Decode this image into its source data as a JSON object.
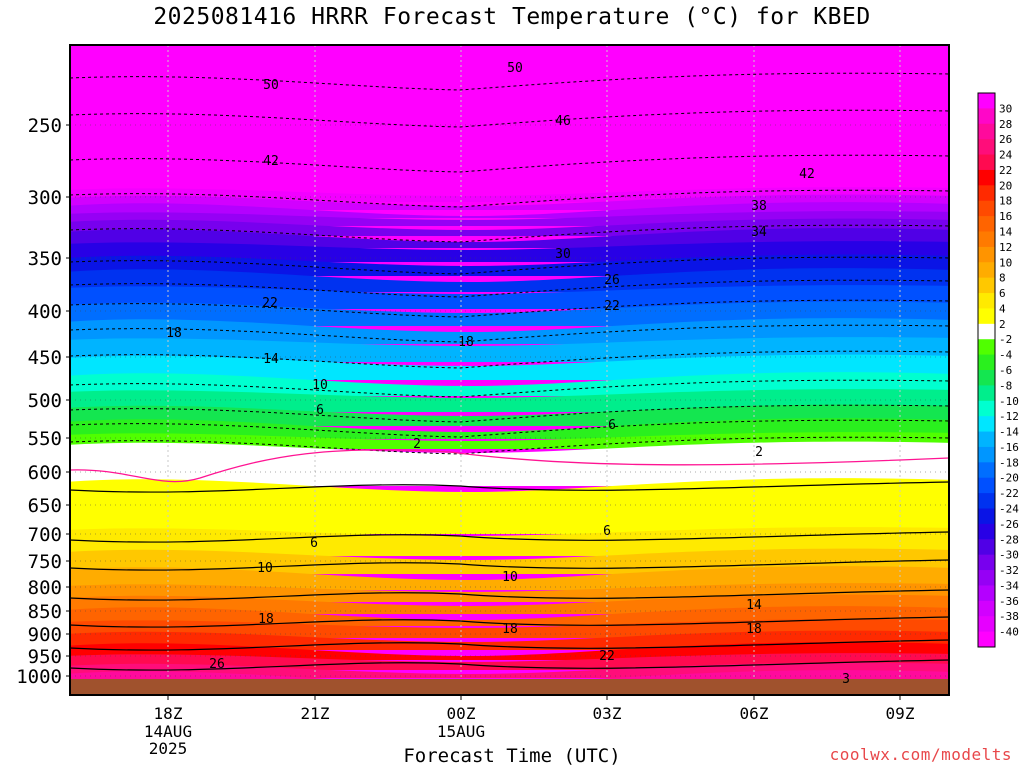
{
  "page": {
    "credit": "coolwx.com/modelts"
  },
  "chart_data": {
    "type": "heatmap",
    "title": "2025081416 HRRR Forecast Temperature (°C) for KBED",
    "xlabel": "Forecast Time (UTC)",
    "ylabel": "",
    "y_scale": "log (pressure)",
    "y_ticks": [
      250,
      300,
      350,
      400,
      450,
      500,
      550,
      600,
      650,
      700,
      750,
      800,
      850,
      900,
      950,
      1000
    ],
    "x_ticks": [
      {
        "label": "18Z",
        "sub": [
          "14AUG",
          "2025"
        ]
      },
      {
        "label": "21Z",
        "sub": []
      },
      {
        "label": "00Z",
        "sub": [
          "15AUG"
        ]
      },
      {
        "label": "03Z",
        "sub": []
      },
      {
        "label": "06Z",
        "sub": []
      },
      {
        "label": "09Z",
        "sub": []
      }
    ],
    "colorbar_labels": [
      "30",
      "28",
      "26",
      "24",
      "22",
      "20",
      "18",
      "16",
      "14",
      "12",
      "10",
      "8",
      "6",
      "4",
      "2",
      "-2",
      "-4",
      "-6",
      "-8",
      "-10",
      "-12",
      "-14",
      "-16",
      "-18",
      "-20",
      "-22",
      "-24",
      "-26",
      "-28",
      "-30",
      "-32",
      "-34",
      "-36",
      "-38",
      "-40"
    ],
    "colorbar_colors": [
      "#ff00ff",
      "#ff06c8",
      "#ff0a9c",
      "#ff0d7a",
      "#ff0a50",
      "#ff0000",
      "#ff2a00",
      "#ff4a00",
      "#ff6400",
      "#ff7a00",
      "#ff9400",
      "#ffac00",
      "#ffc800",
      "#ffea00",
      "#ffff00",
      "#ffffff",
      "#50ff00",
      "#2af01e",
      "#14e650",
      "#00ee8c",
      "#00ffd0",
      "#00e6ff",
      "#00b4ff",
      "#0096ff",
      "#006eff",
      "#0050ff",
      "#0032f0",
      "#0a14e6",
      "#2800e6",
      "#5000e6",
      "#7800ee",
      "#9600f5",
      "#b400ff",
      "#d200ff",
      "#e600ff",
      "#ff00ff"
    ],
    "ground_color": "#a0522d",
    "contour_labels": [
      {
        "value": "50"
      },
      {
        "value": "50"
      },
      {
        "value": "46"
      },
      {
        "value": "42"
      },
      {
        "value": "42"
      },
      {
        "value": "38"
      },
      {
        "value": "34"
      },
      {
        "value": "30"
      },
      {
        "value": "26"
      },
      {
        "value": "22"
      },
      {
        "value": "22"
      },
      {
        "value": "18"
      },
      {
        "value": "18"
      },
      {
        "value": "14"
      },
      {
        "value": "10"
      },
      {
        "value": "6"
      },
      {
        "value": "6"
      },
      {
        "value": "2"
      },
      {
        "value": "2"
      },
      {
        "value": "6"
      },
      {
        "value": "6"
      },
      {
        "value": "10"
      },
      {
        "value": "10"
      },
      {
        "value": "14"
      },
      {
        "value": "18"
      },
      {
        "value": "18"
      },
      {
        "value": "18"
      },
      {
        "value": "22"
      },
      {
        "value": "26"
      },
      {
        "value": "3"
      }
    ]
  }
}
